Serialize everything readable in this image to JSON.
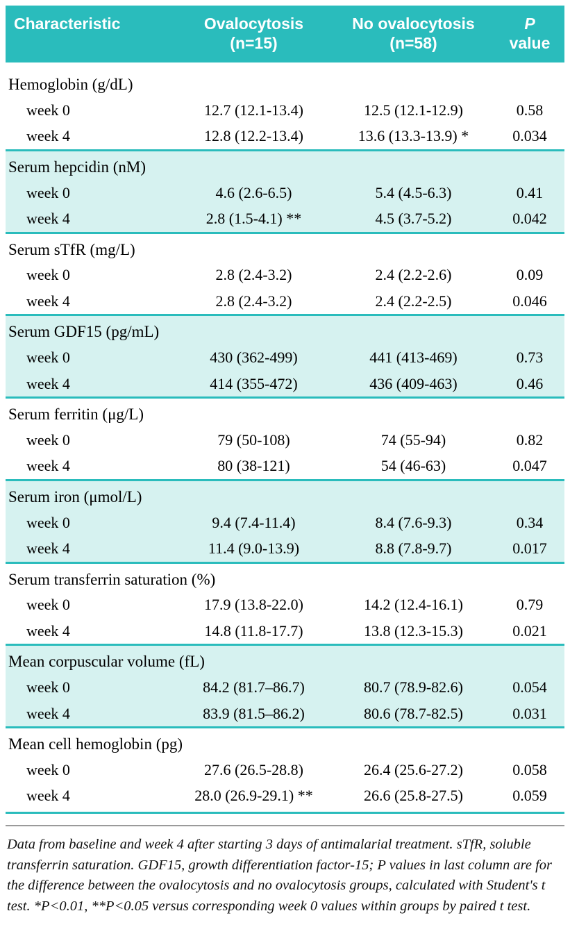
{
  "colors": {
    "teal": "#2abcbc",
    "band": "#d6f2f0",
    "rule": "#9a9a9a"
  },
  "table": {
    "header": [
      {
        "line1": "Characteristic",
        "line2": ""
      },
      {
        "line1": "Ovalocytosis",
        "line2": "(n=15)"
      },
      {
        "line1": "No ovalocytosis",
        "line2": "(n=58)"
      },
      {
        "line1": "P",
        "line2": "value"
      }
    ],
    "groups": [
      {
        "name": "Hemoglobin (g/dL)",
        "rows": [
          {
            "label": "week 0",
            "ovalocytosis": "12.7 (12.1-13.4)",
            "no_ovalocytosis": "12.5 (12.1-12.9)",
            "p": "0.58"
          },
          {
            "label": "week 4",
            "ovalocytosis": "12.8 (12.2-13.4)",
            "no_ovalocytosis": "13.6 (13.3-13.9) *",
            "p": "0.034"
          }
        ]
      },
      {
        "name": "Serum hepcidin (nM)",
        "rows": [
          {
            "label": "week 0",
            "ovalocytosis": "4.6 (2.6-6.5)",
            "no_ovalocytosis": "5.4 (4.5-6.3)",
            "p": "0.41"
          },
          {
            "label": "week 4",
            "ovalocytosis": "2.8 (1.5-4.1) **",
            "no_ovalocytosis": "4.5 (3.7-5.2)",
            "p": "0.042"
          }
        ]
      },
      {
        "name": "Serum sTfR (mg/L)",
        "rows": [
          {
            "label": "week 0",
            "ovalocytosis": "2.8 (2.4-3.2)",
            "no_ovalocytosis": "2.4 (2.2-2.6)",
            "p": "0.09"
          },
          {
            "label": "week 4",
            "ovalocytosis": "2.8 (2.4-3.2)",
            "no_ovalocytosis": "2.4 (2.2-2.5)",
            "p": "0.046"
          }
        ]
      },
      {
        "name": "Serum GDF15 (pg/mL)",
        "rows": [
          {
            "label": "week 0",
            "ovalocytosis": "430 (362-499)",
            "no_ovalocytosis": "441 (413-469)",
            "p": "0.73"
          },
          {
            "label": "week 4",
            "ovalocytosis": "414 (355-472)",
            "no_ovalocytosis": "436 (409-463)",
            "p": "0.46"
          }
        ]
      },
      {
        "name": "Serum ferritin (μg/L)",
        "rows": [
          {
            "label": "week 0",
            "ovalocytosis": "79 (50-108)",
            "no_ovalocytosis": "74 (55-94)",
            "p": "0.82"
          },
          {
            "label": "week 4",
            "ovalocytosis": "80 (38-121)",
            "no_ovalocytosis": "54 (46-63)",
            "p": "0.047"
          }
        ]
      },
      {
        "name": "Serum iron (μmol/L)",
        "rows": [
          {
            "label": "week 0",
            "ovalocytosis": "9.4 (7.4-11.4)",
            "no_ovalocytosis": "8.4 (7.6-9.3)",
            "p": "0.34"
          },
          {
            "label": "week 4",
            "ovalocytosis": "11.4 (9.0-13.9)",
            "no_ovalocytosis": "8.8 (7.8-9.7)",
            "p": "0.017"
          }
        ]
      },
      {
        "name": "Serum transferrin saturation (%)",
        "rows": [
          {
            "label": "week 0",
            "ovalocytosis": "17.9 (13.8-22.0)",
            "no_ovalocytosis": "14.2 (12.4-16.1)",
            "p": "0.79"
          },
          {
            "label": "week 4",
            "ovalocytosis": "14.8 (11.8-17.7)",
            "no_ovalocytosis": "13.8 (12.3-15.3)",
            "p": "0.021"
          }
        ]
      },
      {
        "name": "Mean corpuscular volume (fL)",
        "rows": [
          {
            "label": "week 0",
            "ovalocytosis": "84.2 (81.7–86.7)",
            "no_ovalocytosis": "80.7 (78.9-82.6)",
            "p": "0.054"
          },
          {
            "label": "week 4",
            "ovalocytosis": "83.9 (81.5–86.2)",
            "no_ovalocytosis": "80.6 (78.7-82.5)",
            "p": "0.031"
          }
        ]
      },
      {
        "name": "Mean cell hemoglobin (pg)",
        "rows": [
          {
            "label": "week 0",
            "ovalocytosis": "27.6 (26.5-28.8)",
            "no_ovalocytosis": "26.4 (25.6-27.2)",
            "p": "0.058"
          },
          {
            "label": "week 4",
            "ovalocytosis": "28.0 (26.9-29.1) **",
            "no_ovalocytosis": "26.6 (25.8-27.5)",
            "p": "0.059"
          }
        ]
      }
    ]
  },
  "footnote": "Data from baseline and week 4 after starting 3 days of antimalarial treatment. sTfR, soluble transferrin saturation. GDF15, growth differentiation factor-15; P values in last column are for the difference between the ovalocytosis and no ovalocytosis groups, calculated with Student's t test. *P<0.01, **P<0.05 versus corresponding week 0 values within groups by paired t test."
}
